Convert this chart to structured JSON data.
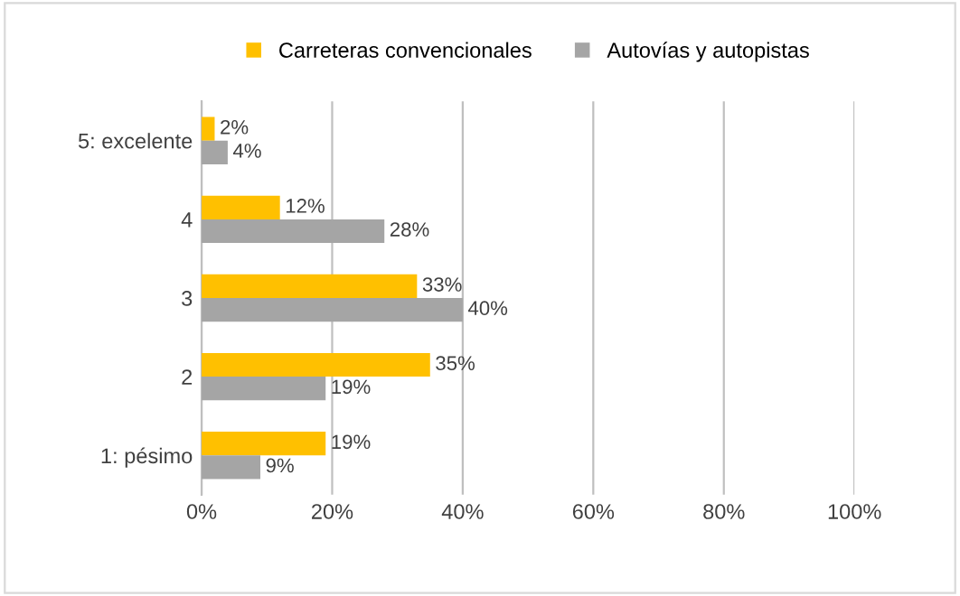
{
  "chart_data": {
    "type": "bar",
    "orientation": "horizontal",
    "categories": [
      "5: excelente",
      "4",
      "3",
      "2",
      "1: pésimo"
    ],
    "series": [
      {
        "name": "Carreteras convencionales",
        "color": "#ffc000",
        "values": [
          2,
          12,
          33,
          35,
          19
        ],
        "value_labels": [
          "2%",
          "12%",
          "33%",
          "35%",
          "19%"
        ]
      },
      {
        "name": "Autovías y autopistas",
        "color": "#a5a5a5",
        "values": [
          4,
          28,
          40,
          19,
          9
        ],
        "value_labels": [
          "4%",
          "28%",
          "40%",
          "19%",
          "9%"
        ]
      }
    ],
    "xlim": [
      0,
      100
    ],
    "xticks": [
      {
        "value": 0,
        "label": "0%"
      },
      {
        "value": 20,
        "label": "20%"
      },
      {
        "value": 40,
        "label": "40%"
      },
      {
        "value": 60,
        "label": "60%"
      },
      {
        "value": 80,
        "label": "80%"
      },
      {
        "value": 100,
        "label": "100%"
      }
    ],
    "grid": "x",
    "legend": "top"
  }
}
